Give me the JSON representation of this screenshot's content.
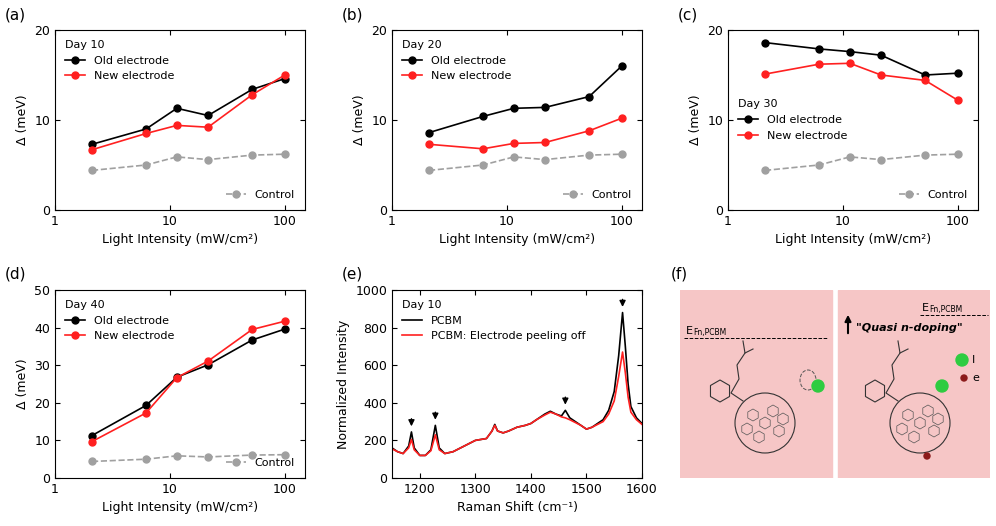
{
  "chart_data": [
    {
      "type": "line",
      "panel_label": "(a)",
      "legend_title": "Day 10",
      "legend": "upper left",
      "log": "x",
      "x_label": "Light Intensity (mW/cm²)",
      "y_label": "Δ (meV)",
      "x": [
        2.1,
        6.2,
        11.5,
        21.5,
        52,
        100
      ],
      "xlim": [
        1,
        150
      ],
      "xticks": [
        1,
        10,
        100
      ],
      "ylim": [
        0,
        20
      ],
      "yticks": [
        0,
        10,
        20
      ],
      "series": [
        {
          "name": "Old electrode",
          "color": "#000000",
          "marker": "circle",
          "line_style": "solid",
          "values": [
            7.3,
            9.0,
            11.3,
            10.5,
            13.4,
            14.6
          ]
        },
        {
          "name": "New electrode",
          "color": "#ff2020",
          "marker": "circle",
          "line_style": "solid",
          "values": [
            6.7,
            8.5,
            9.4,
            9.2,
            12.8,
            15.0
          ]
        },
        {
          "name": "Control",
          "color": "#a0a0a0",
          "marker": "circle",
          "line_style": "dashed",
          "values": [
            4.4,
            5.0,
            5.9,
            5.6,
            6.1,
            6.2
          ]
        }
      ]
    },
    {
      "type": "line",
      "panel_label": "(b)",
      "legend_title": "Day 20",
      "legend": "upper left",
      "log": "x",
      "x_label": "Light Intensity (mW/cm²)",
      "y_label": "Δ (meV)",
      "x": [
        2.1,
        6.2,
        11.5,
        21.5,
        52,
        100
      ],
      "xlim": [
        1,
        150
      ],
      "xticks": [
        1,
        10,
        100
      ],
      "ylim": [
        0,
        20
      ],
      "yticks": [
        0,
        10,
        20
      ],
      "series": [
        {
          "name": "Old electrode",
          "color": "#000000",
          "marker": "circle",
          "line_style": "solid",
          "values": [
            8.6,
            10.4,
            11.3,
            11.4,
            12.6,
            16.0
          ]
        },
        {
          "name": "New electrode",
          "color": "#ff2020",
          "marker": "circle",
          "line_style": "solid",
          "values": [
            7.3,
            6.8,
            7.4,
            7.5,
            8.8,
            10.2
          ]
        },
        {
          "name": "Control",
          "color": "#a0a0a0",
          "marker": "circle",
          "line_style": "dashed",
          "values": [
            4.4,
            5.0,
            5.9,
            5.6,
            6.1,
            6.2
          ]
        }
      ]
    },
    {
      "type": "line",
      "panel_label": "(c)",
      "legend_title": "Day 30",
      "legend": "center left",
      "log": "x",
      "x_label": "Light Intensity (mW/cm²)",
      "y_label": "Δ (meV)",
      "x": [
        2.1,
        6.2,
        11.5,
        21.5,
        52,
        100
      ],
      "xlim": [
        1,
        150
      ],
      "xticks": [
        1,
        10,
        100
      ],
      "ylim": [
        0,
        20
      ],
      "yticks": [
        0,
        10,
        20
      ],
      "series": [
        {
          "name": "Old electrode",
          "color": "#000000",
          "marker": "circle",
          "line_style": "solid",
          "values": [
            18.6,
            17.9,
            17.6,
            17.2,
            15.0,
            15.2
          ]
        },
        {
          "name": "New electrode",
          "color": "#ff2020",
          "marker": "circle",
          "line_style": "solid",
          "values": [
            15.1,
            16.2,
            16.3,
            15.0,
            14.4,
            12.2
          ]
        },
        {
          "name": "Control",
          "color": "#a0a0a0",
          "marker": "circle",
          "line_style": "dashed",
          "values": [
            4.4,
            5.0,
            5.9,
            5.6,
            6.1,
            6.2
          ]
        }
      ]
    },
    {
      "type": "line",
      "panel_label": "(d)",
      "legend_title": "Day 40",
      "legend": "upper left",
      "log": "x",
      "x_label": "Light Intensity (mW/cm²)",
      "y_label": "Δ (meV)",
      "x": [
        2.1,
        6.2,
        11.5,
        21.5,
        52,
        100
      ],
      "xlim": [
        1,
        150
      ],
      "xticks": [
        1,
        10,
        100
      ],
      "ylim": [
        0,
        50
      ],
      "yticks": [
        0,
        10,
        20,
        30,
        40,
        50
      ],
      "series": [
        {
          "name": "Old electrode",
          "color": "#000000",
          "marker": "circle",
          "line_style": "solid",
          "values": [
            11.3,
            19.3,
            26.8,
            30.1,
            36.7,
            39.6
          ]
        },
        {
          "name": "New electrode",
          "color": "#ff2020",
          "marker": "circle",
          "line_style": "solid",
          "values": [
            9.7,
            17.3,
            26.7,
            31.1,
            39.5,
            41.7
          ]
        },
        {
          "name": "Control",
          "color": "#a0a0a0",
          "marker": "circle",
          "line_style": "dashed",
          "values": [
            4.4,
            5.0,
            5.9,
            5.6,
            6.1,
            6.2
          ]
        }
      ]
    },
    {
      "type": "line",
      "panel_label": "(e)",
      "legend_title": "Day 10",
      "legend": "upper left",
      "x_label": "Raman Shift (cm⁻¹)",
      "y_label": "Normalized Intensity",
      "x": [
        1150,
        1160,
        1170,
        1180,
        1185,
        1190,
        1200,
        1210,
        1220,
        1228,
        1235,
        1245,
        1260,
        1280,
        1300,
        1320,
        1330,
        1335,
        1340,
        1350,
        1360,
        1375,
        1390,
        1400,
        1410,
        1425,
        1435,
        1445,
        1455,
        1462,
        1470,
        1480,
        1490,
        1500,
        1510,
        1520,
        1530,
        1540,
        1550,
        1558,
        1565,
        1570,
        1575,
        1580,
        1590,
        1600
      ],
      "xlim": [
        1150,
        1600
      ],
      "xticks": [
        1200,
        1300,
        1400,
        1500,
        1600
      ],
      "ylim": [
        0,
        1000
      ],
      "yticks": [
        0,
        200,
        400,
        600,
        800,
        1000
      ],
      "arrow_x": [
        1185,
        1228,
        1462,
        1565
      ],
      "series": [
        {
          "name": "PCBM",
          "color": "#000000",
          "marker": "none",
          "line_style": "solid",
          "values": [
            160,
            140,
            130,
            170,
            245,
            160,
            120,
            120,
            150,
            280,
            160,
            130,
            140,
            170,
            200,
            210,
            250,
            285,
            250,
            240,
            250,
            270,
            280,
            290,
            310,
            340,
            355,
            340,
            330,
            360,
            320,
            300,
            280,
            260,
            270,
            290,
            310,
            360,
            460,
            650,
            880,
            700,
            500,
            380,
            320,
            290
          ]
        },
        {
          "name": "PCBM: Electrode peeling off",
          "color": "#ff2020",
          "marker": "none",
          "line_style": "solid",
          "values": [
            155,
            140,
            130,
            160,
            205,
            150,
            120,
            120,
            145,
            230,
            150,
            130,
            140,
            170,
            200,
            210,
            250,
            280,
            250,
            240,
            250,
            270,
            280,
            290,
            310,
            335,
            350,
            340,
            325,
            320,
            310,
            295,
            280,
            260,
            270,
            285,
            300,
            340,
            410,
            540,
            670,
            560,
            430,
            350,
            310,
            285
          ]
        }
      ]
    }
  ],
  "diagram": {
    "panel_label": "(f)",
    "fermi_label": {
      "main": "E",
      "sub": "Fn,PCBM"
    },
    "annotation": "\"Quasi n-doping\"",
    "key": [
      {
        "label": "I",
        "color": "#2ecc40"
      },
      {
        "label": "e",
        "color": "#8b1a1a"
      }
    ]
  }
}
